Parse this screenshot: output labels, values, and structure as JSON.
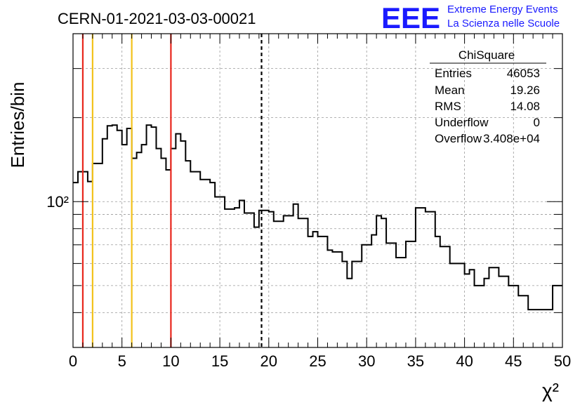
{
  "header": {
    "run_title": "CERN-01-2021-03-03-00021",
    "logo_text": "EEE",
    "logo_line1": "Extreme Energy Events",
    "logo_line2": "La Scienza nelle Scuole",
    "logo_color": "#1a1aff"
  },
  "stats_box": {
    "title": "ChiSquare",
    "rows": [
      {
        "label": "Entries",
        "value": "46053"
      },
      {
        "label": "Mean",
        "value": "19.26"
      },
      {
        "label": "RMS",
        "value": "14.08"
      },
      {
        "label": "Underflow",
        "value": "0"
      },
      {
        "label": "Overflow",
        "value": "3.408e+04"
      }
    ]
  },
  "chart_data": {
    "type": "histogram",
    "xlabel": "χ²",
    "ylabel": "Entries/bin",
    "xlim": [
      0,
      50
    ],
    "ylim": [
      30,
      400
    ],
    "yscale": "log",
    "grid": true,
    "xticks": [
      "0",
      "5",
      "10",
      "15",
      "20",
      "25",
      "30",
      "35",
      "40",
      "45",
      "50"
    ],
    "yticks": [
      {
        "value": 100,
        "label": "10²"
      }
    ],
    "bin_width": 0.5,
    "values": [
      117,
      128,
      128,
      118,
      137,
      137,
      168,
      187,
      188,
      180,
      160,
      183,
      143,
      150,
      160,
      188,
      185,
      155,
      143,
      130,
      155,
      175,
      165,
      140,
      128,
      128,
      120,
      120,
      117,
      104,
      104,
      94,
      94,
      95,
      101,
      91,
      91,
      81,
      93,
      93,
      92,
      85,
      85,
      89,
      89,
      98,
      87,
      87,
      75,
      78,
      75,
      75,
      67,
      66,
      66,
      61,
      53,
      61,
      61,
      70,
      70,
      76,
      89,
      87,
      71,
      71,
      63,
      63,
      72,
      72,
      95,
      95,
      92,
      92,
      75,
      69,
      69,
      60,
      60,
      60,
      55,
      57,
      50,
      50,
      53,
      58,
      58,
      54,
      54,
      50,
      50,
      46,
      46,
      41,
      41,
      41,
      41,
      41,
      50,
      50
    ],
    "vlines": [
      {
        "x": 1,
        "color": "#e8261c",
        "style": "solid"
      },
      {
        "x": 2,
        "color": "#f2c21a",
        "style": "solid"
      },
      {
        "x": 6,
        "color": "#f2c21a",
        "style": "solid"
      },
      {
        "x": 10,
        "color": "#e8261c",
        "style": "solid"
      },
      {
        "x": 19.26,
        "color": "#000000",
        "style": "dashed"
      }
    ]
  }
}
